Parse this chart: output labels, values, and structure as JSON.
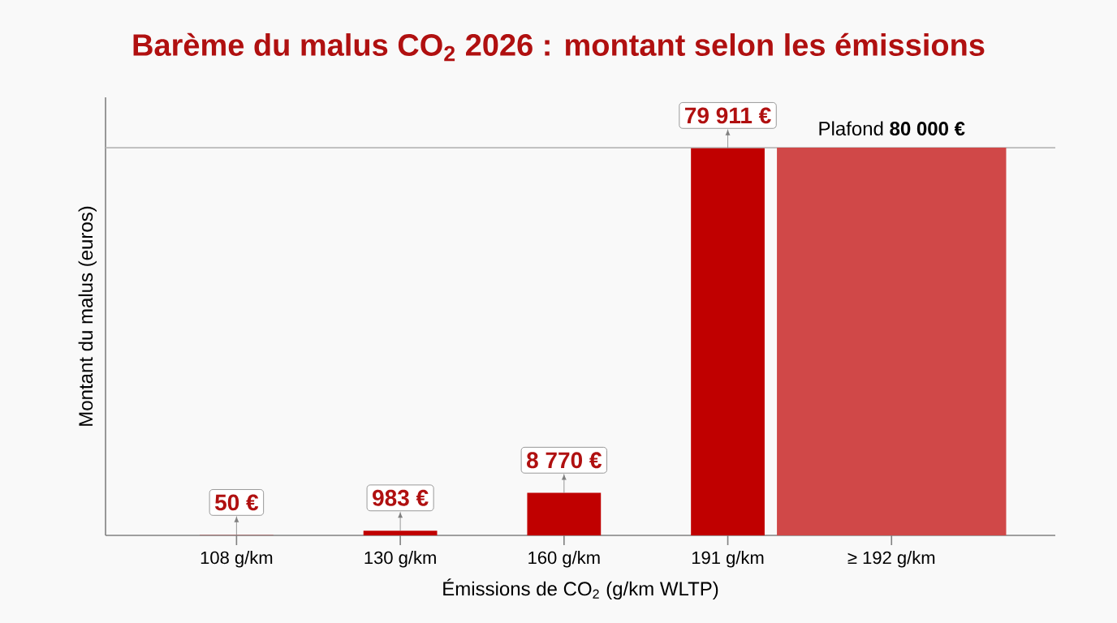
{
  "chart_data": {
    "type": "bar",
    "title": "Barème du malus CO$_{2}$ 2026 : montant selon les émissions",
    "xlabel": "Émissions de CO$_{2}$ (g/km WLTP)",
    "ylabel": "Montant du malus (euros)",
    "categories": [
      "108 g/km",
      "130 g/km",
      "160 g/km",
      "191 g/km",
      "≥ 192 g/km"
    ],
    "values": [
      50,
      983,
      8770,
      79911,
      80000
    ],
    "colors": [
      "#c00000",
      "#c00000",
      "#c00000",
      "#c00000",
      "#d04848"
    ],
    "value_labels": [
      "50 €",
      "983 €",
      "8 770 €",
      "79 911 €",
      null
    ],
    "ref_lines": [
      {
        "axis": "y",
        "value": 80000,
        "label": "Plafond **80 000 €**",
        "color": "#b8b8b8"
      }
    ]
  }
}
